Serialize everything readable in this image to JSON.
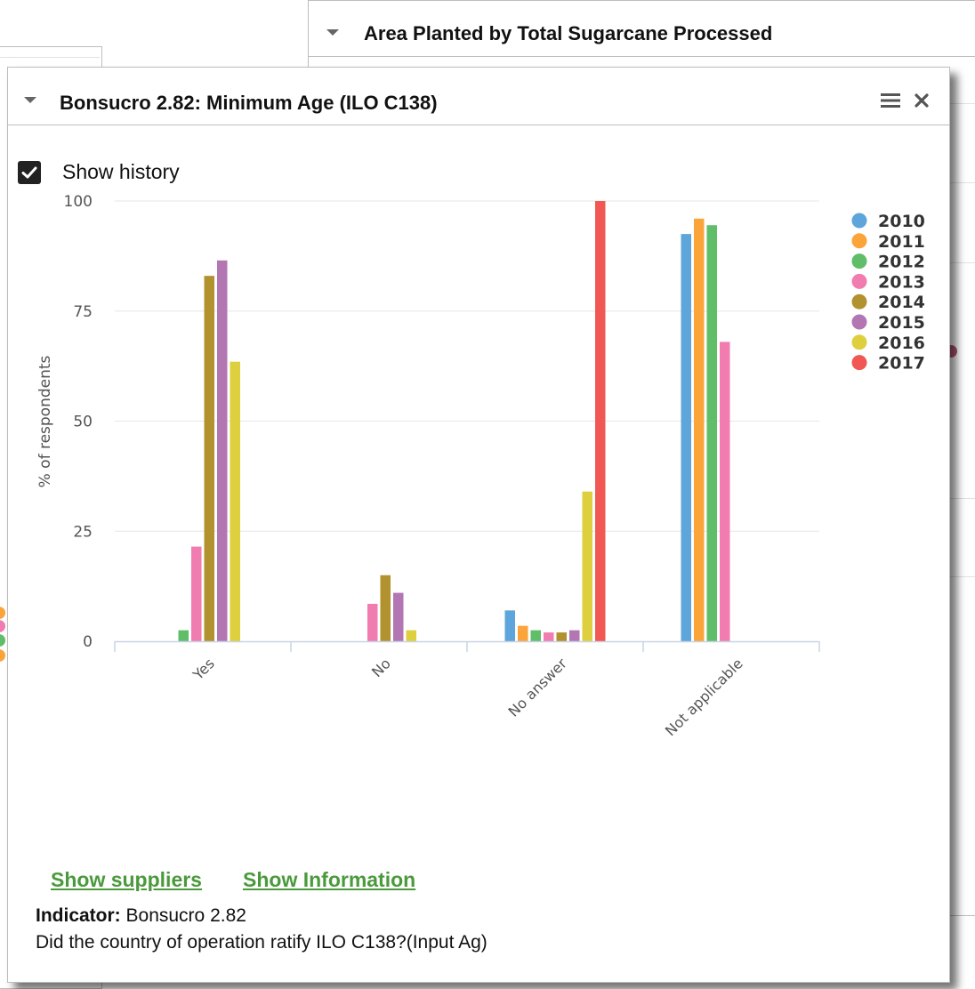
{
  "back_panel": {
    "title": "Area Planted by Total Sugarcane Processed"
  },
  "main_panel": {
    "title": "Bonsucro 2.82: Minimum Age (ILO C138)",
    "show_history_label": "Show history",
    "show_history_checked": true,
    "links": {
      "show_suppliers": "Show suppliers",
      "show_information": "Show Information"
    },
    "indicator_label": "Indicator:",
    "indicator_value": "Bonsucro 2.82",
    "question": "Did the country of operation ratify ILO C138?(Input Ag)"
  },
  "chart_data": {
    "type": "bar",
    "ylabel": "% of respondents",
    "ylim": [
      0,
      100
    ],
    "yticks": [
      0,
      25,
      50,
      75,
      100
    ],
    "grid": true,
    "legend_position": "right",
    "categories": [
      "Yes",
      "No",
      "No answer",
      "Not applicable"
    ],
    "series": [
      {
        "name": "2010",
        "color": "#5da5da",
        "values": [
          0,
          0,
          7,
          92.5
        ]
      },
      {
        "name": "2011",
        "color": "#faa43a",
        "values": [
          0,
          0,
          3.5,
          96
        ]
      },
      {
        "name": "2012",
        "color": "#60bd68",
        "values": [
          2.5,
          0,
          2.5,
          94.5
        ]
      },
      {
        "name": "2013",
        "color": "#f17cb0",
        "values": [
          21.5,
          8.5,
          2,
          68
        ]
      },
      {
        "name": "2014",
        "color": "#b2912f",
        "values": [
          83,
          15,
          2,
          0
        ]
      },
      {
        "name": "2015",
        "color": "#b276b2",
        "values": [
          86.5,
          11,
          2.5,
          0
        ]
      },
      {
        "name": "2016",
        "color": "#decf3f",
        "values": [
          63.5,
          2.5,
          34,
          0
        ]
      },
      {
        "name": "2017",
        "color": "#f15854",
        "values": [
          0,
          0,
          100,
          0
        ]
      }
    ]
  }
}
